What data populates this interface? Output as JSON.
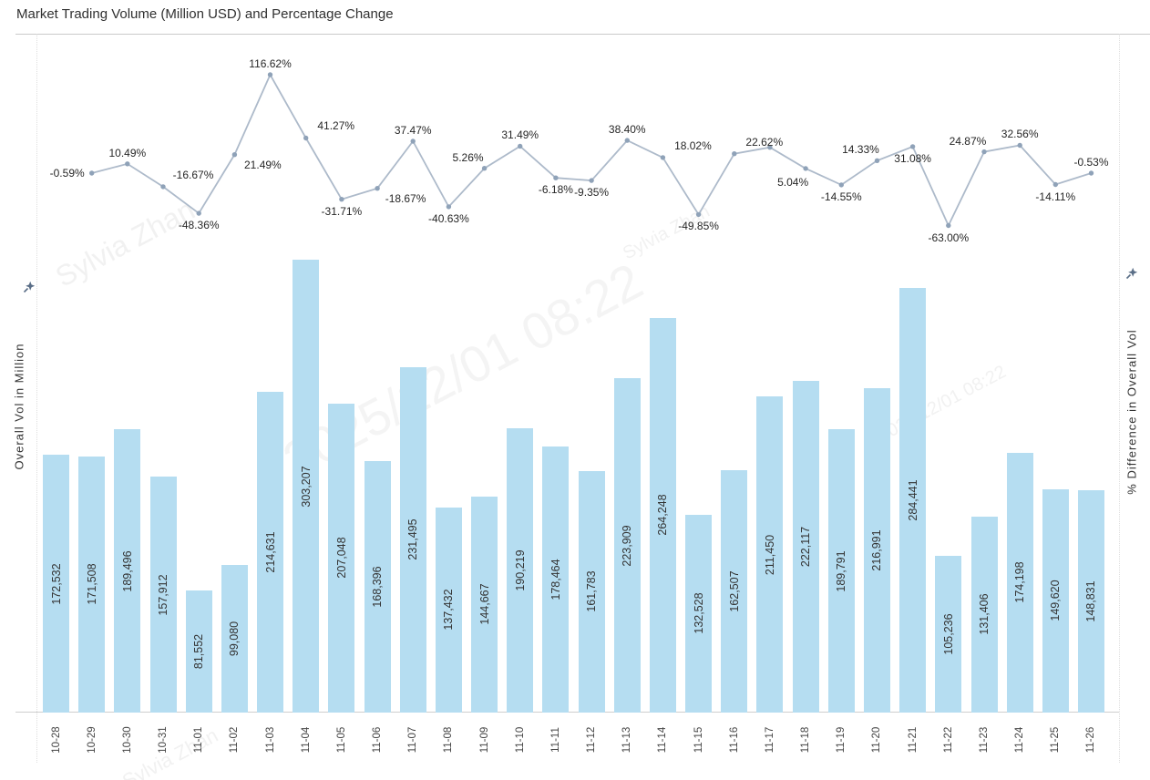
{
  "axes": {
    "left_title": "Overall Vol in Million",
    "right_title": "% Difference in Overall Vol"
  },
  "watermark": {
    "author": "Sylvia Zhan",
    "timestamp": "2025/12/01 08:22"
  },
  "colors": {
    "bar_fill": "#b5ddf1",
    "line_stroke": "#adbaca",
    "point_fill": "#8fa2b8",
    "pin_fill": "#5a6e87"
  },
  "chart_data": {
    "type": "dual-axis bar+line",
    "title": "Market Trading Volume (Million USD) and Percentage Change",
    "xlabel": "",
    "ylabel_left": "Overall Vol in Million",
    "ylabel_right": "% Difference in Overall Vol",
    "grid": false,
    "legend": "none",
    "categories": [
      "10-28",
      "10-29",
      "10-30",
      "10-31",
      "11-01",
      "11-02",
      "11-03",
      "11-04",
      "11-05",
      "11-06",
      "11-07",
      "11-08",
      "11-09",
      "11-10",
      "11-11",
      "11-12",
      "11-13",
      "11-14",
      "11-15",
      "11-16",
      "11-17",
      "11-18",
      "11-19",
      "11-20",
      "11-21",
      "11-22",
      "11-23",
      "11-24",
      "11-25",
      "11-26"
    ],
    "series": [
      {
        "name": "Overall Vol in Million",
        "type": "bar",
        "axis": "left",
        "values": [
          172532,
          171508,
          189496,
          157912,
          81552,
          99080,
          214631,
          303207,
          207048,
          168396,
          231495,
          137432,
          144667,
          190219,
          178464,
          161783,
          223909,
          264248,
          132528,
          162507,
          211450,
          222117,
          189791,
          216991,
          284441,
          105236,
          131406,
          174198,
          149620,
          148831
        ],
        "labels": [
          "172,532",
          "171,508",
          "189,496",
          "157,912",
          "81,552",
          "99,080",
          "214,631",
          "303,207",
          "207,048",
          "168,396",
          "231,495",
          "137,432",
          "144,667",
          "190,219",
          "178,464",
          "161,783",
          "223,909",
          "264,248",
          "132,528",
          "162,507",
          "211,450",
          "222,117",
          "189,791",
          "216,991",
          "284,441",
          "105,236",
          "131,406",
          "174,198",
          "149,620",
          "148,831"
        ]
      },
      {
        "name": "% Difference in Overall Vol",
        "type": "line",
        "axis": "right",
        "start_category_index": 1,
        "values": [
          -0.59,
          10.49,
          -16.67,
          -48.36,
          21.49,
          116.62,
          41.27,
          -31.71,
          -18.67,
          37.47,
          -40.63,
          5.26,
          31.49,
          -6.18,
          -9.35,
          38.4,
          18.02,
          -49.85,
          22.62,
          30.12,
          5.04,
          -14.55,
          14.33,
          31.08,
          -63.0,
          24.87,
          32.56,
          -14.11,
          -0.53
        ],
        "labels": [
          "-0.59%",
          "10.49%",
          "-16.67%",
          "-48.36%",
          "21.49%",
          "116.62%",
          "41.27%",
          "-31.71%",
          "-18.67%",
          "37.47%",
          "-40.63%",
          "5.26%",
          "31.49%",
          "-6.18%",
          "-9.35%",
          "38.40%",
          "18.02%",
          "-49.85%",
          "22.62%",
          null,
          "5.04%",
          "-14.55%",
          "14.33%",
          "31.08%",
          "-63.00%",
          "24.87%",
          "32.56%",
          "-14.11%",
          "-0.53%"
        ],
        "label_placements": [
          "left",
          "above",
          "above-right",
          "below",
          "below-right",
          "above",
          "above-right",
          "below",
          "below-right",
          "above",
          "below",
          "above-left",
          "above",
          "below",
          "below",
          "above",
          "above-right",
          "below",
          "above-right",
          null,
          "below-left",
          "below",
          "above-left",
          "below",
          "below",
          "above-left",
          "above",
          "below",
          "above"
        ]
      }
    ]
  }
}
